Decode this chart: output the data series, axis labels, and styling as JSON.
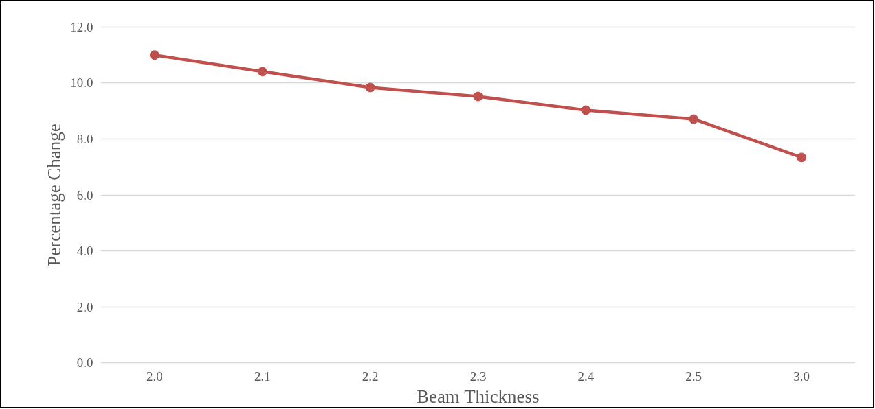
{
  "chart_data": {
    "type": "line",
    "xlabel": "Beam Thickness",
    "ylabel": "Percentage Change",
    "categories": [
      "2.0",
      "2.1",
      "2.2",
      "2.3",
      "2.4",
      "2.5",
      "3.0"
    ],
    "series": [
      {
        "color": "#c0504d",
        "values": [
          11.0,
          10.41,
          9.84,
          9.52,
          9.03,
          8.71,
          7.34
        ]
      }
    ],
    "ylim": [
      0,
      12
    ],
    "yticks": [
      {
        "value": 0,
        "label": "0.0"
      },
      {
        "value": 2,
        "label": "2.0"
      },
      {
        "value": 4,
        "label": "4.0"
      },
      {
        "value": 6,
        "label": "6.0"
      },
      {
        "value": 8,
        "label": "8.0"
      },
      {
        "value": 10,
        "label": "10.0"
      },
      {
        "value": 12,
        "label": "12.0"
      }
    ],
    "grid": "y",
    "marker": "circle",
    "line_style": "solid"
  }
}
